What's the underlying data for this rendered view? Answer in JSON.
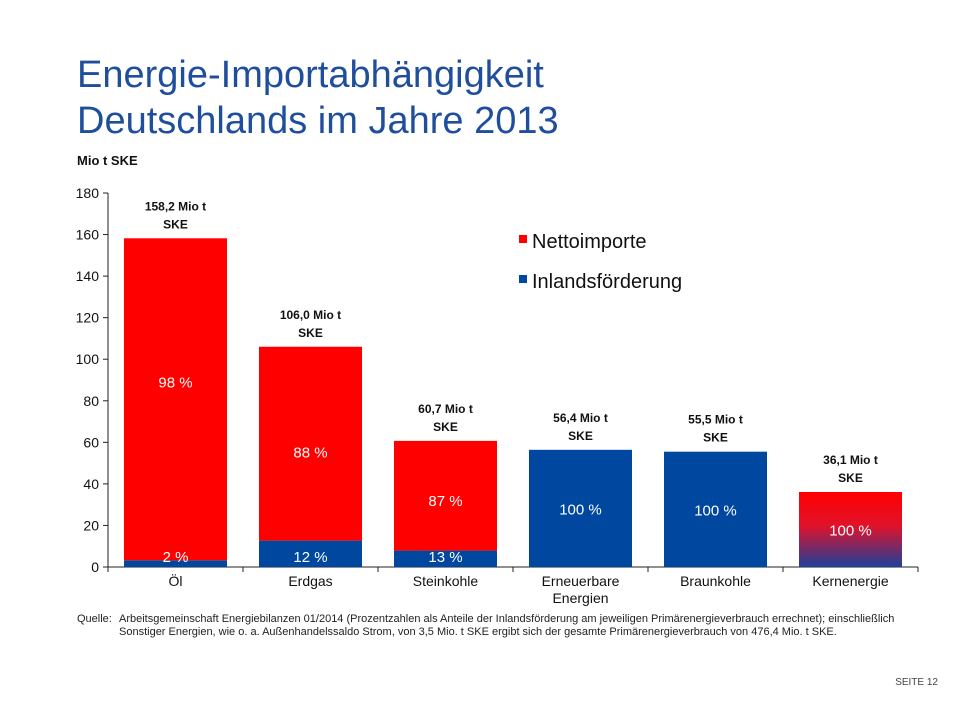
{
  "title": {
    "line1": "Energie-Importabhängigkeit",
    "line2": "Deutschlands im Jahre 2013"
  },
  "unit_label": "Mio t SKE",
  "source": {
    "label": "Quelle:",
    "text": "Arbeitsgemeinschaft Energiebilanzen 01/2014 (Prozentzahlen als Anteile der Inlandsförderung am jeweiligen Primärenergieverbrauch errechnet); einschließlich Sonstiger Energien, wie o. a. Außenhandelssaldo Strom, von 3,5 Mio. t SKE ergibt sich der gesamte Primärenergieverbrauch von 476,4 Mio. t SKE."
  },
  "page_number": "SEITE 12",
  "colors": {
    "nettoimporte": "#ff0000",
    "inlandsfoerderung": "#0047a0",
    "title": "#1f4e9c"
  },
  "chart_data": {
    "type": "bar",
    "stacked": true,
    "categories": [
      "Öl",
      "Erdgas",
      "Steinkohle",
      "Erneuerbare Energien",
      "Braunkohle",
      "Kernenergie"
    ],
    "series": [
      {
        "name": "Inlandsförderung",
        "values": [
          3.2,
          12.7,
          7.9,
          56.4,
          55.5,
          0
        ]
      },
      {
        "name": "Nettoimporte",
        "values": [
          155.0,
          93.3,
          52.8,
          0,
          0,
          36.1
        ]
      }
    ],
    "totals": [
      "158,2 Mio t SKE",
      "106,0 Mio t SKE",
      "60,7 Mio t SKE",
      "56,4 Mio t SKE",
      "55,5 Mio t SKE",
      "36,1 Mio t SKE"
    ],
    "labels_inland": [
      "2 %",
      "12 %",
      "13 %",
      "100 %",
      "100 %",
      ""
    ],
    "labels_import": [
      "98 %",
      "88 %",
      "87 %",
      "",
      "",
      "100 %"
    ],
    "ylim": [
      0,
      180
    ],
    "yticks": [
      0,
      20,
      40,
      60,
      80,
      100,
      120,
      140,
      160,
      180
    ],
    "legend_position": "top-right",
    "grid": false
  }
}
